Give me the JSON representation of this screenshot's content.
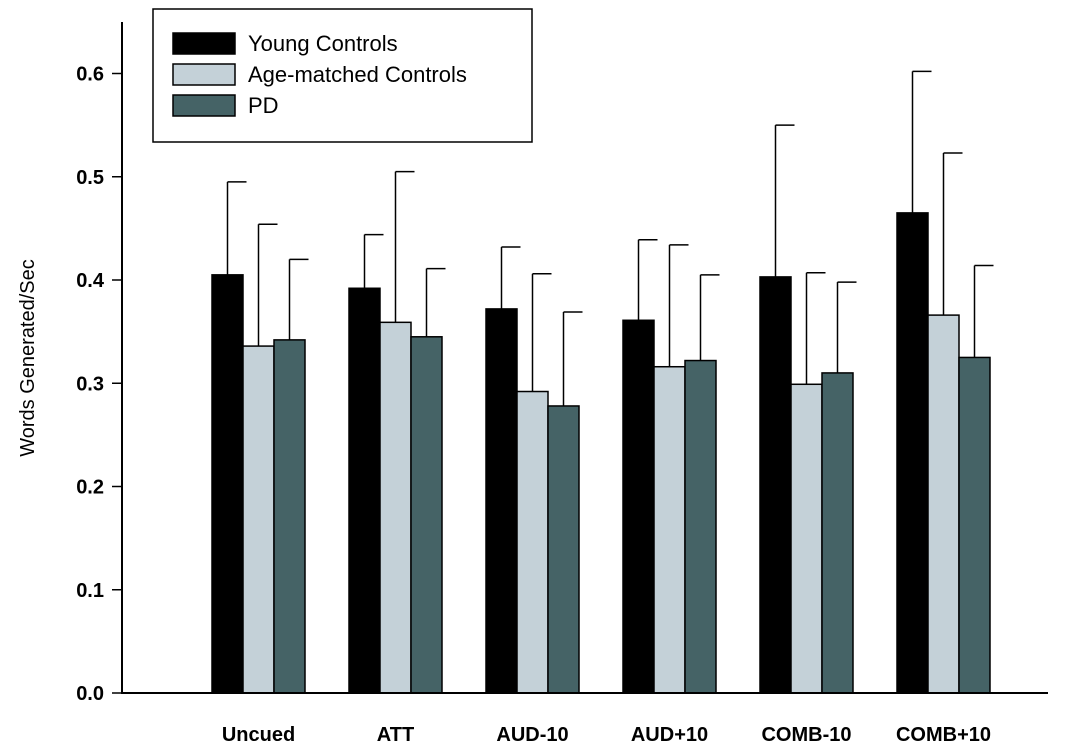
{
  "chart_data": {
    "type": "bar",
    "title": "",
    "xlabel": "",
    "ylabel": "Words Generated/Sec",
    "ylim": [
      0,
      0.65
    ],
    "yticks": [
      "0.0",
      "0.1",
      "0.2",
      "0.3",
      "0.4",
      "0.5",
      "0.6"
    ],
    "categories": [
      "Uncued",
      "ATT",
      "AUD-10",
      "AUD+10",
      "COMB-10",
      "COMB+10"
    ],
    "series": [
      {
        "name": "Young Controls",
        "color": "#000000",
        "values": [
          0.405,
          0.392,
          0.372,
          0.361,
          0.403,
          0.465
        ],
        "errors": [
          0.09,
          0.052,
          0.06,
          0.078,
          0.147,
          0.137
        ]
      },
      {
        "name": "Age-matched Controls",
        "color": "#c4d1d8",
        "values": [
          0.336,
          0.359,
          0.292,
          0.316,
          0.299,
          0.366
        ],
        "errors": [
          0.118,
          0.146,
          0.114,
          0.118,
          0.108,
          0.157
        ]
      },
      {
        "name": "PD",
        "color": "#456366",
        "values": [
          0.342,
          0.345,
          0.278,
          0.322,
          0.31,
          0.325
        ],
        "errors": [
          0.078,
          0.066,
          0.091,
          0.083,
          0.088,
          0.089
        ]
      }
    ],
    "grid": false,
    "legend": "top-left"
  }
}
